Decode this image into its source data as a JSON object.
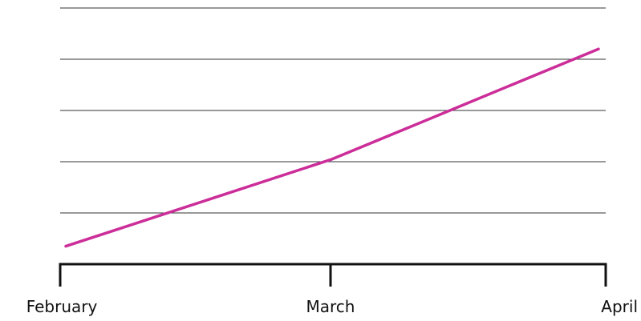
{
  "chart_data": {
    "type": "line",
    "categories": [
      "February",
      "March",
      "April"
    ],
    "series": [
      {
        "values": [
          7,
          41,
          84
        ]
      }
    ],
    "ylim": [
      0,
      100
    ],
    "grid": true,
    "title": "",
    "xlabel": "",
    "ylabel": ""
  },
  "colors": {
    "line": "#cc2e99",
    "grid": "#333333",
    "axis": "#111111"
  }
}
